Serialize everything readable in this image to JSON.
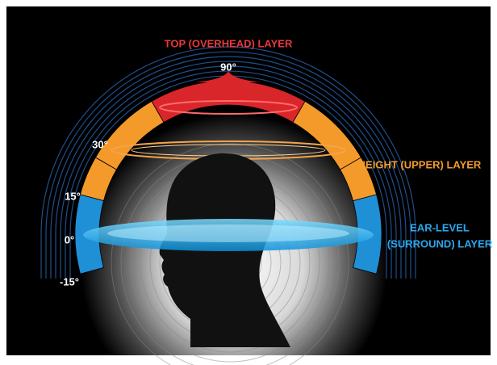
{
  "title": "TOP (OVERHEAD) LAYER",
  "angles": {
    "top": "90°",
    "upper": "30°",
    "low": "15°",
    "ear": "0°",
    "below": "-15°"
  },
  "layers": {
    "height": "HEIGHT (UPPER) LAYER",
    "ear_level": [
      "EAR-LEVEL",
      "(SURROUND) LAYER"
    ]
  }
}
